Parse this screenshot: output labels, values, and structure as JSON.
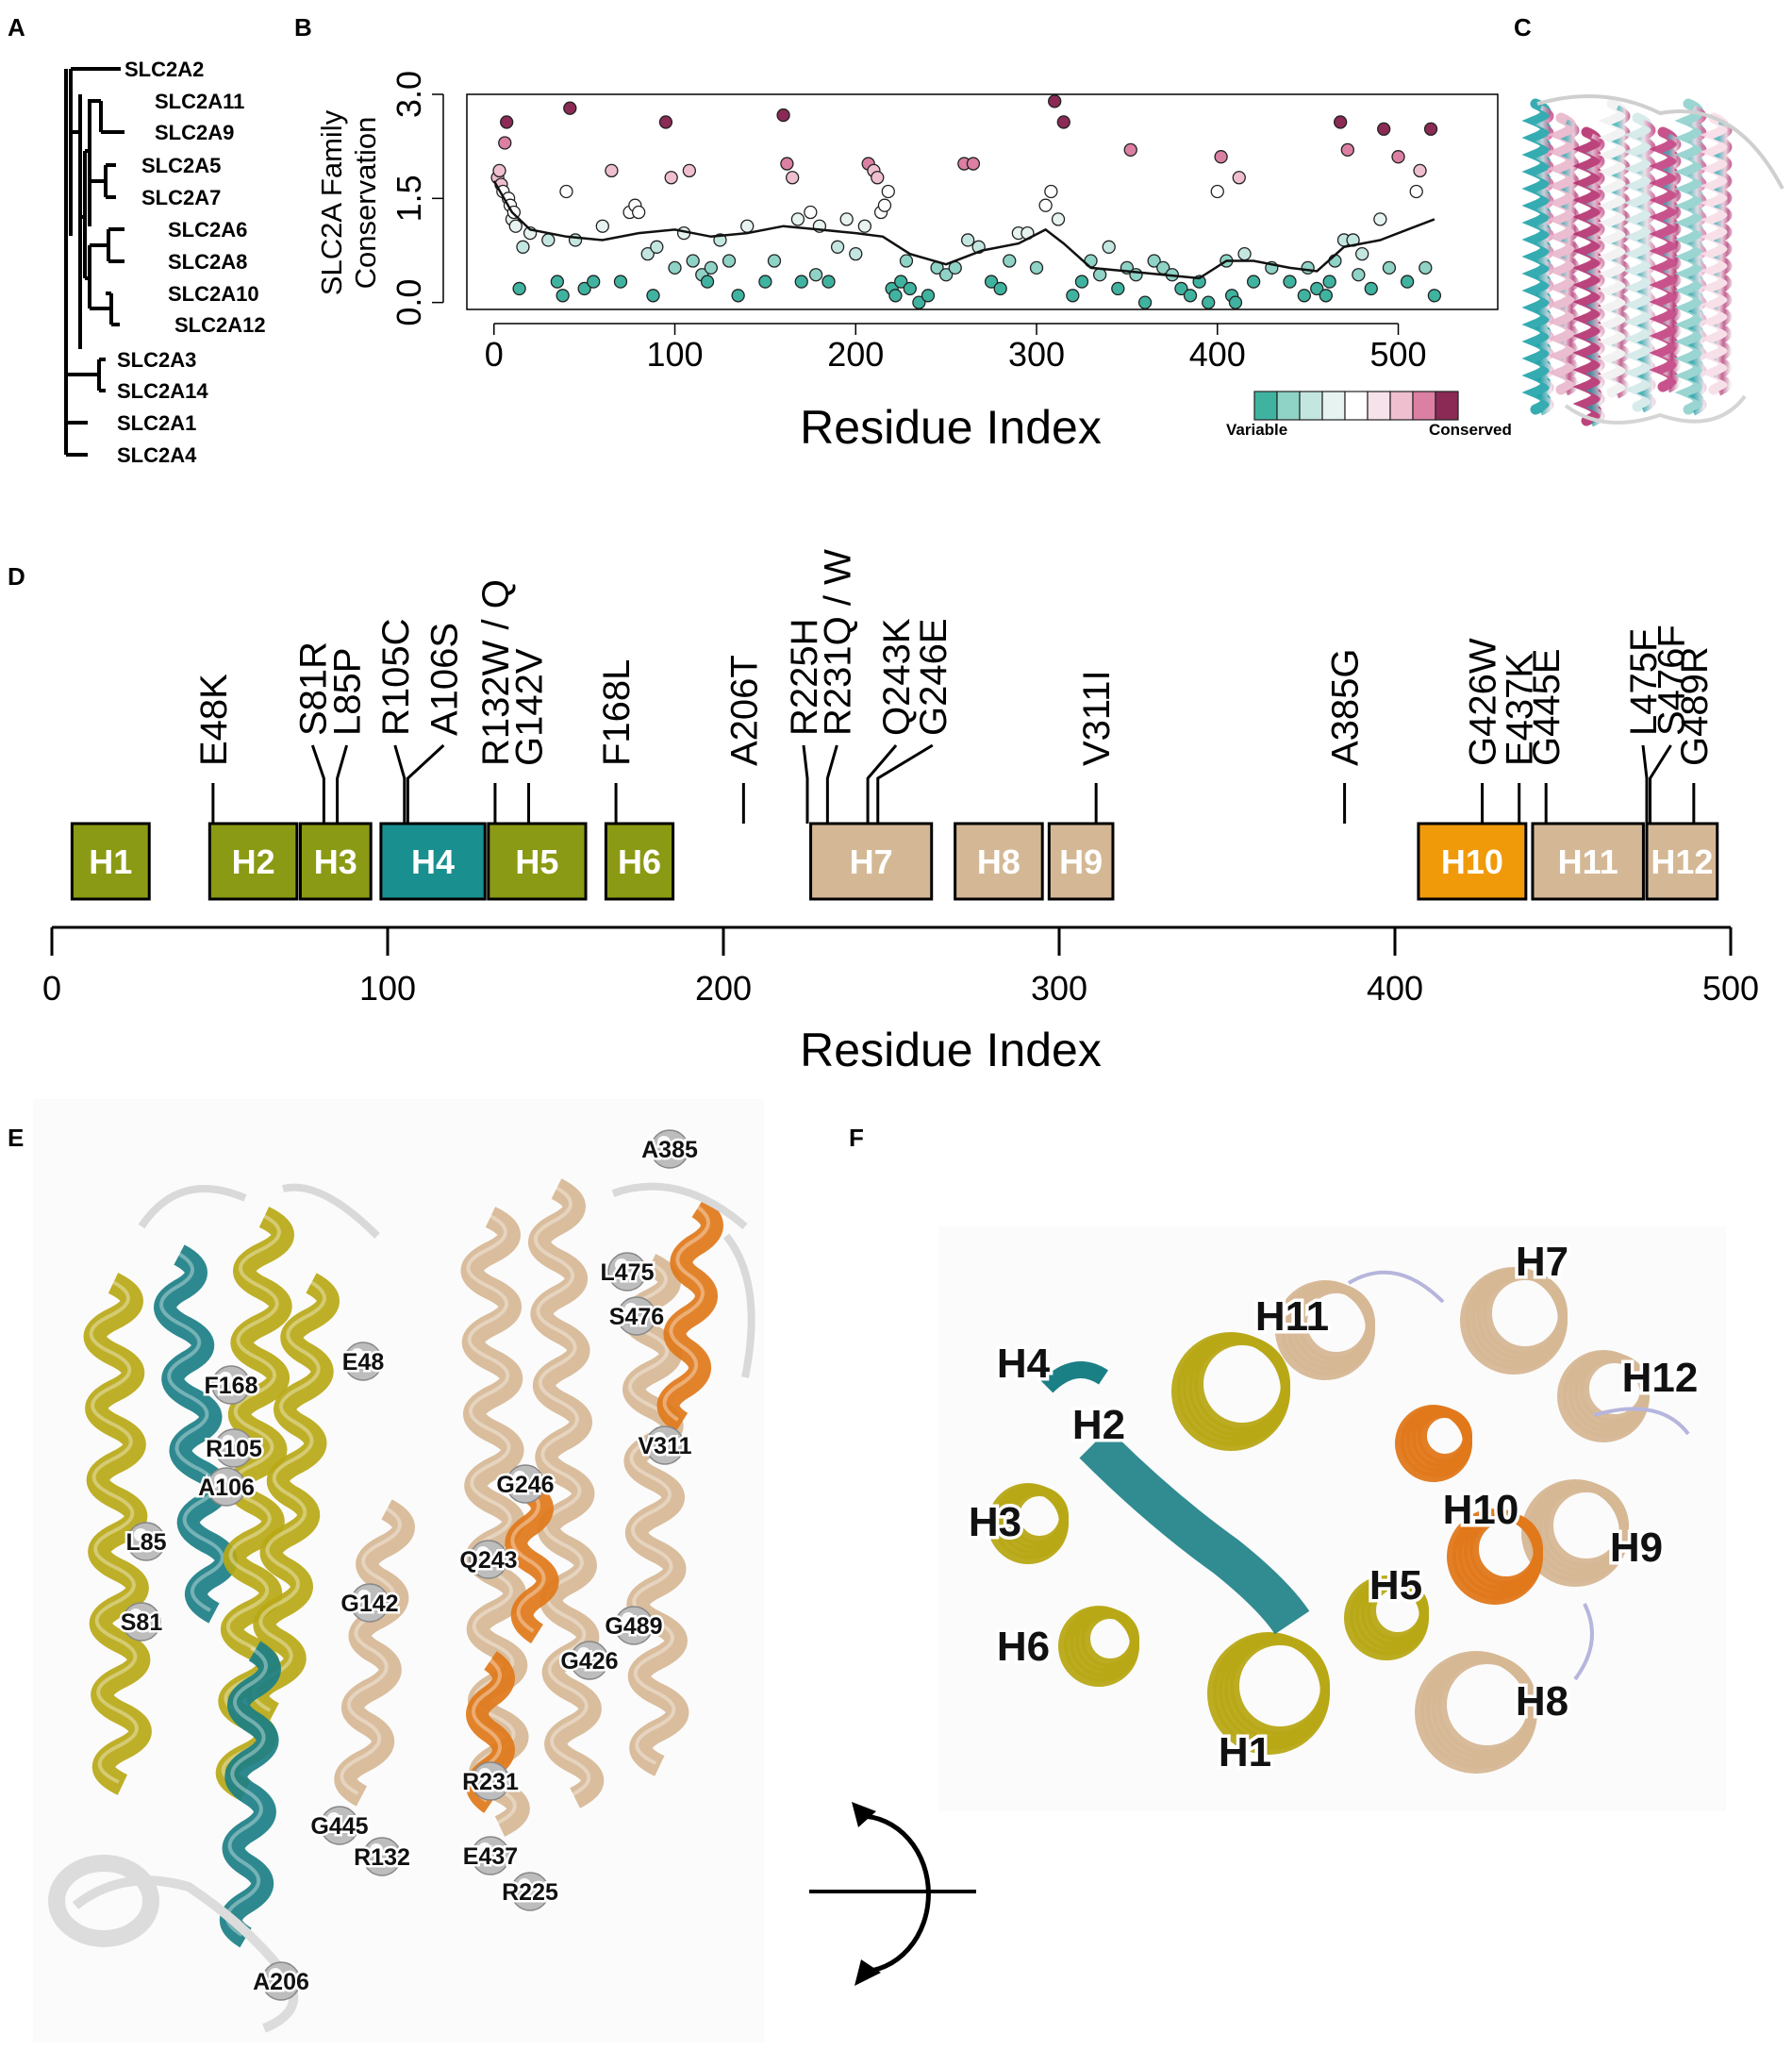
{
  "panels": {
    "a": "A",
    "b": "B",
    "c": "C",
    "d": "D",
    "e": "E",
    "f": "F"
  },
  "tree": {
    "leaves": [
      "SLC2A2",
      "SLC2A11",
      "SLC2A9",
      "SLC2A5",
      "SLC2A7",
      "SLC2A6",
      "SLC2A8",
      "SLC2A10",
      "SLC2A12",
      "SLC2A3",
      "SLC2A14",
      "SLC2A1",
      "SLC2A4"
    ]
  },
  "colors": {
    "h_green": "#8b9a14",
    "h_teal": "#1a8f8f",
    "h_tan": "#d4b896",
    "h_orange": "#f09a0a",
    "ribbon_yellow": "#b8a816",
    "ribbon_teal": "#1b7f86",
    "ribbon_tan": "#d6b795",
    "ribbon_orange": "#e0781a",
    "scale": [
      "#3fb3a0",
      "#8fd2c6",
      "#c4e6e1",
      "#e6f3f1",
      "#ffffff",
      "#f6e2ea",
      "#efbfd0",
      "#db7fa3",
      "#8a2a55"
    ]
  },
  "chart_data": [
    {
      "type": "scatter",
      "ylabel": "SLC2A Family\nConservation",
      "xlabel": "Residue Index",
      "xlim": [
        -15,
        555
      ],
      "ylim": [
        -0.1,
        3.0
      ],
      "xticks": [
        0,
        100,
        200,
        300,
        400,
        500
      ],
      "yticks": [
        0.0,
        1.5,
        3.0
      ],
      "legend": {
        "low_label": "Variable",
        "high_label": "Conserved",
        "placement": "bottom-right"
      },
      "points": [
        [
          2,
          1.8
        ],
        [
          3,
          1.9
        ],
        [
          4,
          1.7
        ],
        [
          5,
          1.6
        ],
        [
          6,
          2.3
        ],
        [
          7,
          2.6
        ],
        [
          8,
          1.5
        ],
        [
          9,
          1.4
        ],
        [
          10,
          1.2
        ],
        [
          11,
          1.3
        ],
        [
          12,
          1.1
        ],
        [
          14,
          0.2
        ],
        [
          16,
          0.8
        ],
        [
          20,
          1.0
        ],
        [
          30,
          0.9
        ],
        [
          35,
          0.3
        ],
        [
          38,
          0.1
        ],
        [
          40,
          1.6
        ],
        [
          42,
          2.8
        ],
        [
          45,
          0.9
        ],
        [
          50,
          0.2
        ],
        [
          55,
          0.3
        ],
        [
          60,
          1.1
        ],
        [
          65,
          1.9
        ],
        [
          70,
          0.3
        ],
        [
          75,
          1.3
        ],
        [
          78,
          1.4
        ],
        [
          80,
          1.3
        ],
        [
          85,
          0.7
        ],
        [
          88,
          0.1
        ],
        [
          90,
          0.8
        ],
        [
          95,
          2.6
        ],
        [
          98,
          1.8
        ],
        [
          100,
          0.5
        ],
        [
          105,
          1.0
        ],
        [
          108,
          1.9
        ],
        [
          110,
          0.6
        ],
        [
          115,
          0.4
        ],
        [
          118,
          0.3
        ],
        [
          120,
          0.5
        ],
        [
          125,
          0.9
        ],
        [
          130,
          0.6
        ],
        [
          135,
          0.1
        ],
        [
          140,
          1.1
        ],
        [
          150,
          0.3
        ],
        [
          155,
          0.6
        ],
        [
          160,
          2.7
        ],
        [
          162,
          2.0
        ],
        [
          165,
          1.8
        ],
        [
          168,
          1.2
        ],
        [
          170,
          0.3
        ],
        [
          175,
          1.3
        ],
        [
          178,
          0.4
        ],
        [
          180,
          1.1
        ],
        [
          185,
          0.3
        ],
        [
          190,
          0.8
        ],
        [
          195,
          1.2
        ],
        [
          200,
          0.7
        ],
        [
          205,
          1.1
        ],
        [
          207,
          2.0
        ],
        [
          210,
          1.9
        ],
        [
          212,
          1.8
        ],
        [
          214,
          1.3
        ],
        [
          216,
          1.4
        ],
        [
          218,
          1.6
        ],
        [
          220,
          0.2
        ],
        [
          222,
          0.1
        ],
        [
          225,
          0.3
        ],
        [
          228,
          0.6
        ],
        [
          230,
          0.2
        ],
        [
          235,
          0.0
        ],
        [
          240,
          0.1
        ],
        [
          245,
          0.5
        ],
        [
          250,
          0.4
        ],
        [
          255,
          0.5
        ],
        [
          260,
          2.0
        ],
        [
          262,
          0.9
        ],
        [
          265,
          2.0
        ],
        [
          268,
          0.8
        ],
        [
          275,
          0.3
        ],
        [
          280,
          0.2
        ],
        [
          285,
          0.6
        ],
        [
          290,
          1.0
        ],
        [
          295,
          1.0
        ],
        [
          300,
          0.5
        ],
        [
          305,
          1.4
        ],
        [
          308,
          1.6
        ],
        [
          310,
          2.9
        ],
        [
          312,
          1.2
        ],
        [
          315,
          2.6
        ],
        [
          320,
          0.1
        ],
        [
          325,
          0.3
        ],
        [
          330,
          0.6
        ],
        [
          335,
          0.4
        ],
        [
          340,
          0.8
        ],
        [
          345,
          0.2
        ],
        [
          350,
          0.5
        ],
        [
          352,
          2.2
        ],
        [
          355,
          0.4
        ],
        [
          360,
          0.0
        ],
        [
          365,
          0.6
        ],
        [
          370,
          0.5
        ],
        [
          375,
          0.4
        ],
        [
          380,
          0.2
        ],
        [
          385,
          0.1
        ],
        [
          390,
          0.3
        ],
        [
          395,
          0.0
        ],
        [
          400,
          1.6
        ],
        [
          402,
          2.1
        ],
        [
          405,
          0.6
        ],
        [
          408,
          0.1
        ],
        [
          410,
          0.0
        ],
        [
          412,
          1.8
        ],
        [
          415,
          0.7
        ],
        [
          420,
          0.3
        ],
        [
          430,
          0.5
        ],
        [
          440,
          0.3
        ],
        [
          448,
          0.1
        ],
        [
          450,
          0.5
        ],
        [
          455,
          0.2
        ],
        [
          460,
          0.1
        ],
        [
          462,
          0.3
        ],
        [
          465,
          0.6
        ],
        [
          468,
          2.6
        ],
        [
          470,
          0.9
        ],
        [
          472,
          2.2
        ],
        [
          475,
          0.9
        ],
        [
          478,
          0.4
        ],
        [
          480,
          0.7
        ],
        [
          485,
          0.2
        ],
        [
          490,
          1.2
        ],
        [
          492,
          2.5
        ],
        [
          495,
          0.5
        ],
        [
          500,
          2.1
        ],
        [
          505,
          0.3
        ],
        [
          510,
          1.6
        ],
        [
          512,
          1.9
        ],
        [
          515,
          0.5
        ],
        [
          518,
          2.5
        ],
        [
          520,
          0.1
        ]
      ],
      "smooth": [
        [
          0,
          1.75
        ],
        [
          10,
          1.3
        ],
        [
          20,
          1.05
        ],
        [
          40,
          0.95
        ],
        [
          60,
          0.9
        ],
        [
          80,
          1.0
        ],
        [
          100,
          1.05
        ],
        [
          120,
          0.95
        ],
        [
          140,
          1.0
        ],
        [
          160,
          1.1
        ],
        [
          180,
          1.05
        ],
        [
          200,
          1.0
        ],
        [
          215,
          0.95
        ],
        [
          230,
          0.7
        ],
        [
          250,
          0.55
        ],
        [
          270,
          0.75
        ],
        [
          290,
          0.85
        ],
        [
          305,
          1.05
        ],
        [
          315,
          0.85
        ],
        [
          330,
          0.5
        ],
        [
          350,
          0.45
        ],
        [
          370,
          0.4
        ],
        [
          390,
          0.35
        ],
        [
          405,
          0.6
        ],
        [
          420,
          0.6
        ],
        [
          440,
          0.5
        ],
        [
          455,
          0.45
        ],
        [
          470,
          0.8
        ],
        [
          490,
          0.9
        ],
        [
          505,
          1.05
        ],
        [
          520,
          1.2
        ]
      ]
    },
    {
      "type": "bar",
      "xlabel": "Residue Index",
      "xlim": [
        0,
        500
      ],
      "xticks": [
        0,
        100,
        200,
        300,
        400,
        500
      ],
      "helices": [
        {
          "name": "H1",
          "start": 6,
          "end": 29,
          "color": "h_green"
        },
        {
          "name": "H2",
          "start": 47,
          "end": 73,
          "color": "h_green"
        },
        {
          "name": "H3",
          "start": 74,
          "end": 95,
          "color": "h_green"
        },
        {
          "name": "H4",
          "start": 98,
          "end": 129,
          "color": "h_teal"
        },
        {
          "name": "H5",
          "start": 130,
          "end": 159,
          "color": "h_green"
        },
        {
          "name": "H6",
          "start": 165,
          "end": 185,
          "color": "h_green"
        },
        {
          "name": "H7",
          "start": 226,
          "end": 262,
          "color": "h_tan"
        },
        {
          "name": "H8",
          "start": 269,
          "end": 295,
          "color": "h_tan"
        },
        {
          "name": "H9",
          "start": 297,
          "end": 316,
          "color": "h_tan"
        },
        {
          "name": "H10",
          "start": 407,
          "end": 439,
          "color": "h_orange"
        },
        {
          "name": "H11",
          "start": 441,
          "end": 474,
          "color": "h_tan"
        },
        {
          "name": "H12",
          "start": 475,
          "end": 496,
          "color": "h_tan"
        }
      ],
      "mutations": [
        {
          "label": "E48K",
          "pos": 48
        },
        {
          "label": "S81R",
          "pos": 81
        },
        {
          "label": "L85P",
          "pos": 85
        },
        {
          "label": "R105C",
          "pos": 105
        },
        {
          "label": "A106S",
          "pos": 106
        },
        {
          "label": "R132W / Q",
          "pos": 132
        },
        {
          "label": "G142V",
          "pos": 142
        },
        {
          "label": "F168L",
          "pos": 168
        },
        {
          "label": "A206T",
          "pos": 206
        },
        {
          "label": "R225H",
          "pos": 225
        },
        {
          "label": "R231Q / W",
          "pos": 231
        },
        {
          "label": "Q243K",
          "pos": 243
        },
        {
          "label": "G246E",
          "pos": 246
        },
        {
          "label": "V311I",
          "pos": 311
        },
        {
          "label": "A385G",
          "pos": 385
        },
        {
          "label": "G426W",
          "pos": 426
        },
        {
          "label": "E437K",
          "pos": 437
        },
        {
          "label": "G445E",
          "pos": 445
        },
        {
          "label": "L475F",
          "pos": 475
        },
        {
          "label": "S476F",
          "pos": 476
        },
        {
          "label": "G489R",
          "pos": 489
        }
      ]
    }
  ],
  "panel_e": {
    "labels": [
      "A385",
      "L475",
      "S476",
      "E48",
      "F168",
      "R105",
      "A106",
      "V311",
      "G246",
      "L85",
      "Q243",
      "S81",
      "G142",
      "G489",
      "G426",
      "R231",
      "G445",
      "R132",
      "E437",
      "R225",
      "A206"
    ]
  },
  "panel_f": {
    "labels": [
      "H7",
      "H11",
      "H4",
      "H12",
      "H2",
      "H10",
      "H3",
      "H9",
      "H5",
      "H6",
      "H8",
      "H1"
    ]
  }
}
